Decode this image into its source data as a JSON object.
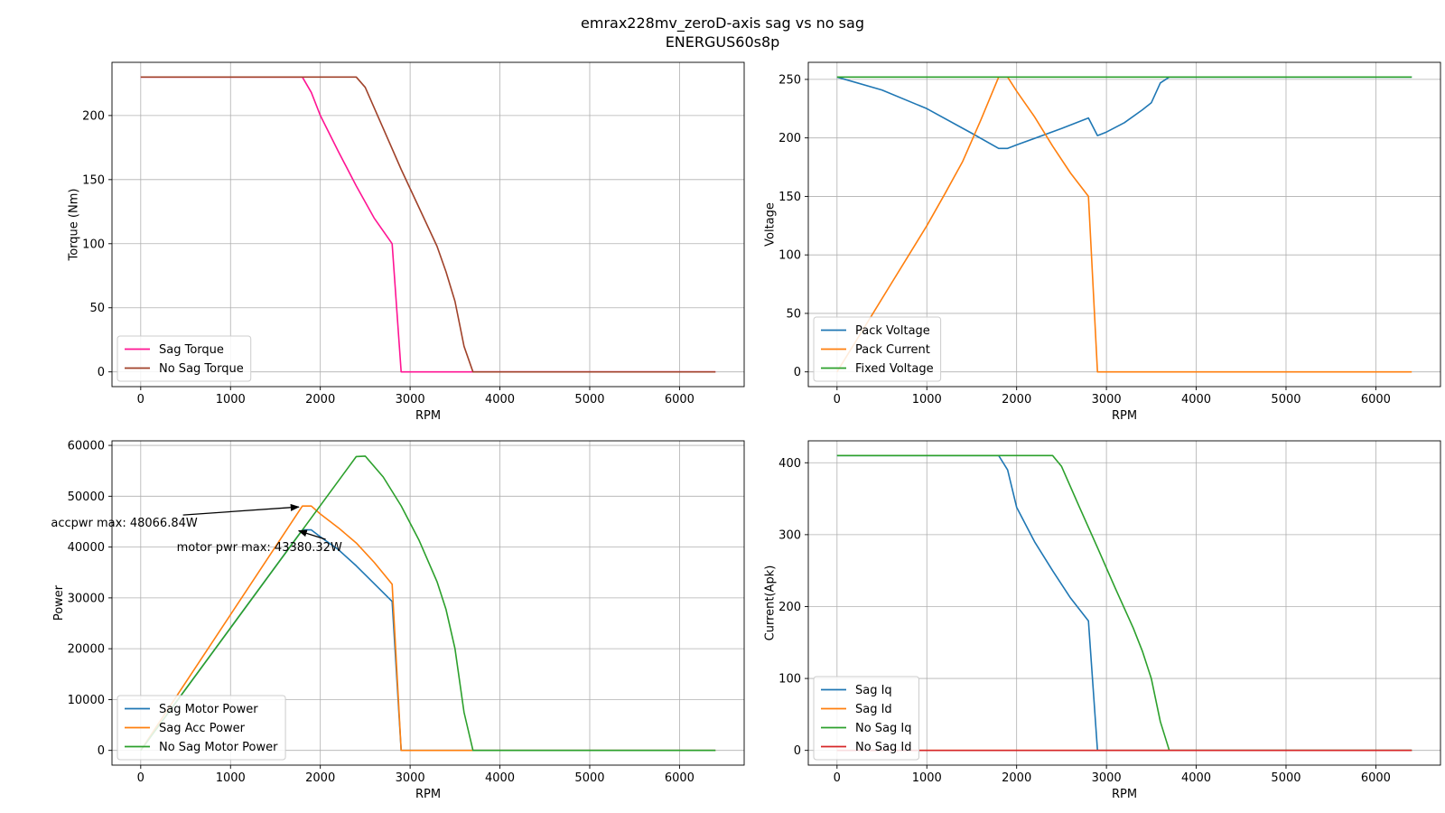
{
  "figure": {
    "title_line1": "emrax228mv_zeroD-axis sag vs no sag",
    "title_line2": "ENERGUS60s8p"
  },
  "chart_data": [
    {
      "type": "line",
      "xlabel": "RPM",
      "ylabel": "Torque (Nm)",
      "xlim": [
        -320,
        6720
      ],
      "ylim": [
        -11.5,
        241.5
      ],
      "xticks": [
        0,
        1000,
        2000,
        3000,
        4000,
        5000,
        6000
      ],
      "yticks": [
        0,
        50,
        100,
        150,
        200
      ],
      "grid": true,
      "legend_position": "lower left",
      "series": [
        {
          "name": "Sag Torque",
          "color": "#ff1493",
          "x": [
            0,
            1800,
            1900,
            2000,
            2200,
            2400,
            2600,
            2800,
            2900,
            4000,
            6400
          ],
          "y": [
            230,
            230,
            218,
            200,
            172,
            145,
            120,
            100,
            0,
            0,
            0
          ]
        },
        {
          "name": "No Sag Torque",
          "color": "#a0422a",
          "x": [
            0,
            2400,
            2500,
            2700,
            2900,
            3100,
            3300,
            3400,
            3500,
            3600,
            3700,
            6400
          ],
          "y": [
            230,
            230,
            222,
            190,
            158,
            128,
            98,
            78,
            55,
            20,
            0,
            0
          ]
        }
      ],
      "annotations": []
    },
    {
      "type": "line",
      "xlabel": "RPM",
      "ylabel": "Voltage",
      "xlim": [
        -320,
        6720
      ],
      "ylim": [
        -12.6,
        264.6
      ],
      "xticks": [
        0,
        1000,
        2000,
        3000,
        4000,
        5000,
        6000
      ],
      "yticks": [
        0,
        50,
        100,
        150,
        200,
        250
      ],
      "grid": true,
      "legend_position": "lower left",
      "series": [
        {
          "name": "Pack Voltage",
          "color": "#1f77b4",
          "x": [
            0,
            500,
            1000,
            1500,
            1800,
            1900,
            2000,
            2500,
            2800,
            2900,
            3000,
            3200,
            3400,
            3500,
            3600,
            3700,
            6400
          ],
          "y": [
            252,
            241,
            225,
            204,
            191,
            191,
            194,
            208,
            217,
            202,
            205,
            213,
            224,
            230,
            247,
            252,
            252
          ]
        },
        {
          "name": "Pack Current",
          "color": "#ff7f0e",
          "x": [
            0,
            200,
            400,
            600,
            800,
            1000,
            1200,
            1400,
            1600,
            1800,
            1900,
            2000,
            2200,
            2400,
            2600,
            2800,
            2900,
            4000,
            6400
          ],
          "y": [
            0,
            25,
            50,
            75,
            100,
            125,
            152,
            180,
            215,
            252,
            252,
            240,
            218,
            193,
            170,
            150,
            0,
            0,
            0
          ]
        },
        {
          "name": "Fixed Voltage",
          "color": "#2ca02c",
          "x": [
            0,
            6400
          ],
          "y": [
            252,
            252
          ]
        }
      ],
      "annotations": []
    },
    {
      "type": "line",
      "xlabel": "RPM",
      "ylabel": "Power",
      "xlim": [
        -320,
        6720
      ],
      "ylim": [
        -2900,
        60900
      ],
      "xticks": [
        0,
        1000,
        2000,
        3000,
        4000,
        5000,
        6000
      ],
      "yticks": [
        0,
        10000,
        20000,
        30000,
        40000,
        50000,
        60000
      ],
      "grid": true,
      "legend_position": "lower left",
      "series": [
        {
          "name": "Sag Motor Power",
          "color": "#1f77b4",
          "x": [
            0,
            1800,
            1900,
            2000,
            2200,
            2400,
            2600,
            2800,
            2900,
            4000,
            6400
          ],
          "y": [
            0,
            43380,
            43380,
            42000,
            39500,
            36300,
            32800,
            29300,
            0,
            0,
            0
          ]
        },
        {
          "name": "Sag Acc Power",
          "color": "#ff7f0e",
          "x": [
            0,
            1800,
            1900,
            2000,
            2200,
            2400,
            2600,
            2800,
            2900,
            4000,
            6400
          ],
          "y": [
            0,
            48067,
            48067,
            46500,
            43800,
            40800,
            37000,
            32700,
            0,
            0,
            0
          ]
        },
        {
          "name": "No Sag Motor Power",
          "color": "#2ca02c",
          "x": [
            0,
            2400,
            2500,
            2700,
            2900,
            3100,
            3300,
            3400,
            3500,
            3600,
            3700,
            6400
          ],
          "y": [
            0,
            57800,
            57900,
            53800,
            48100,
            41300,
            33200,
            27700,
            20000,
            7500,
            0,
            0
          ]
        }
      ],
      "annotations": [
        {
          "text": "accpwr max: 48066.84W",
          "x": 1800,
          "y": 48067,
          "text_x": -1000,
          "text_y": 44000
        },
        {
          "text": "motor pwr max: 43380.32W",
          "x": 1800,
          "y": 43380,
          "text_x": 400,
          "text_y": 39200
        }
      ]
    },
    {
      "type": "line",
      "xlabel": "RPM",
      "ylabel": "Current(Apk)",
      "xlim": [
        -320,
        6720
      ],
      "ylim": [
        -20.5,
        430.5
      ],
      "xticks": [
        0,
        1000,
        2000,
        3000,
        4000,
        5000,
        6000
      ],
      "yticks": [
        0,
        100,
        200,
        300,
        400
      ],
      "grid": true,
      "legend_position": "lower left",
      "series": [
        {
          "name": "Sag Iq",
          "color": "#1f77b4",
          "x": [
            0,
            1800,
            1900,
            2000,
            2200,
            2400,
            2600,
            2800,
            2900,
            4000,
            6400
          ],
          "y": [
            410,
            410,
            390,
            338,
            290,
            250,
            212,
            180,
            0,
            0,
            0
          ]
        },
        {
          "name": "Sag Id",
          "color": "#ff7f0e",
          "x": [
            0,
            6400
          ],
          "y": [
            0,
            0
          ]
        },
        {
          "name": "No Sag Iq",
          "color": "#2ca02c",
          "x": [
            0,
            2400,
            2500,
            2700,
            2900,
            3100,
            3300,
            3400,
            3500,
            3600,
            3700,
            6400
          ],
          "y": [
            410,
            410,
            395,
            338,
            282,
            225,
            170,
            138,
            100,
            40,
            0,
            0
          ]
        },
        {
          "name": "No Sag Id",
          "color": "#d62728",
          "x": [
            0,
            6400
          ],
          "y": [
            0,
            0
          ]
        }
      ],
      "annotations": []
    }
  ]
}
